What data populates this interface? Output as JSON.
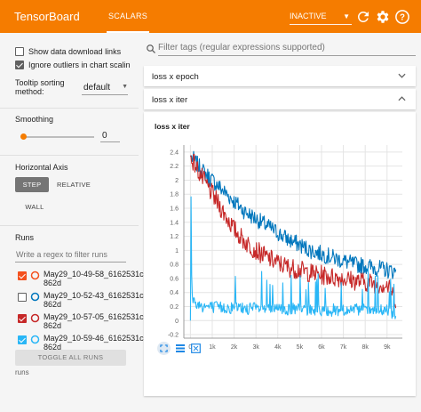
{
  "topbar": {
    "brand": "TensorBoard",
    "active_tab": "SCALARS",
    "dashboard_select": "INACTIVE",
    "colors": {
      "bar": "#f57c00",
      "text": "#ffffff"
    },
    "icons": [
      "refresh-icon",
      "settings-icon",
      "help-icon"
    ]
  },
  "sidebar": {
    "show_download_label": "Show data download links",
    "show_download_checked": false,
    "ignore_outliers_label": "Ignore outliers in chart scalin",
    "ignore_outliers_checked": true,
    "tooltip_sorting_label_1": "Tooltip sorting",
    "tooltip_sorting_label_2": "method:",
    "tooltip_sorting_value": "default",
    "smoothing_title": "Smoothing",
    "smoothing_value": "0",
    "smoothing_level": 0,
    "horizontal_axis_title": "Horizontal Axis",
    "axis_options": {
      "step": "STEP",
      "relative": "RELATIVE",
      "wall": "WALL"
    },
    "axis_selected": "STEP",
    "runs_title": "Runs",
    "runs_filter_placeholder": "Write a regex to filter runs",
    "runs": [
      {
        "line1": "May29_10-49-58_6162531c",
        "line2": "862d",
        "checked": true,
        "color": "#f4511e"
      },
      {
        "line1": "May29_10-52-43_6162531c",
        "line2": "862d",
        "checked": false,
        "color": "#0277bd"
      },
      {
        "line1": "May29_10-57-05_6162531c",
        "line2": "862d",
        "checked": true,
        "color": "#c62828"
      },
      {
        "line1": "May29_10-59-46_6162531c",
        "line2": "862d",
        "checked": true,
        "color": "#29b6f6"
      }
    ],
    "toggle_all_label": "TOGGLE ALL RUNS",
    "footer": "runs"
  },
  "main": {
    "filter_placeholder": "Filter tags (regular expressions supported)",
    "groups": [
      {
        "label": "loss x epoch",
        "expanded": false
      },
      {
        "label": "loss x iter",
        "expanded": true
      }
    ]
  },
  "chart_data": {
    "type": "line",
    "title": "loss x iter",
    "xlabel": "",
    "ylabel": "",
    "x_ticks": [
      "0",
      "1k",
      "2k",
      "3k",
      "4k",
      "5k",
      "6k",
      "7k",
      "8k",
      "9k"
    ],
    "y_ticks": [
      "2.4",
      "2.2",
      "2",
      "1.8",
      "1.6",
      "1.4",
      "1.2",
      "1",
      "0.8",
      "0.6",
      "0.4",
      "0.2",
      "0",
      "-0.2"
    ],
    "xlim": [
      -300,
      9700
    ],
    "ylim": [
      -0.25,
      2.5
    ],
    "grid": true,
    "series": [
      {
        "color": "#0277bd",
        "x": [
          0,
          250,
          500,
          1000,
          1500,
          2000,
          2500,
          3000,
          3500,
          4000,
          4500,
          5000,
          5500,
          6000,
          6500,
          7000,
          7500,
          8000,
          8500,
          9000,
          9400
        ],
        "values": [
          2.35,
          2.25,
          2.15,
          2.0,
          1.85,
          1.7,
          1.55,
          1.45,
          1.35,
          1.25,
          1.15,
          1.08,
          1.0,
          0.95,
          0.9,
          0.85,
          0.8,
          0.78,
          0.75,
          0.72,
          0.7
        ]
      },
      {
        "color": "#c62828",
        "x": [
          0,
          250,
          500,
          1000,
          1500,
          2000,
          2500,
          3000,
          3500,
          4000,
          4500,
          5000,
          5500,
          6000,
          6500,
          7000,
          7500,
          8000,
          8500,
          9000,
          9400
        ],
        "values": [
          2.35,
          2.2,
          2.05,
          1.8,
          1.55,
          1.3,
          1.12,
          1.0,
          0.9,
          0.82,
          0.76,
          0.72,
          0.68,
          0.65,
          0.62,
          0.6,
          0.57,
          0.55,
          0.53,
          0.5,
          0.3
        ]
      },
      {
        "color": "#29b6f6",
        "x": [
          0,
          30,
          60,
          90,
          200,
          400,
          700,
          1000,
          2000,
          3000,
          4000,
          5000,
          6000,
          7000,
          8000,
          9000,
          9400
        ],
        "values": [
          0.0,
          1.8,
          0.6,
          0.35,
          0.25,
          0.22,
          0.2,
          0.19,
          0.18,
          0.17,
          0.16,
          0.16,
          0.15,
          0.15,
          0.15,
          0.14,
          0.05
        ]
      }
    ]
  },
  "chart_toolbar": {
    "icons": [
      "fit-domain-icon",
      "log-scale-icon",
      "expand-chart-icon"
    ]
  }
}
